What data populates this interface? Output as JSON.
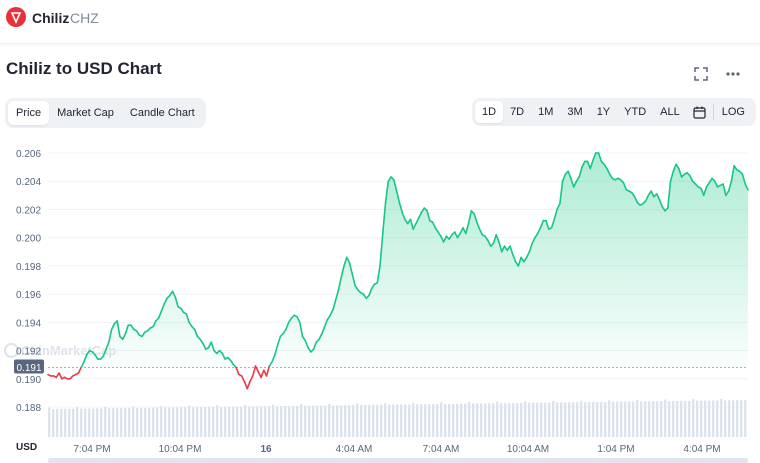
{
  "header": {
    "coin_name": "Chiliz",
    "coin_symbol": "CHZ"
  },
  "chart_title": "Chiliz to USD Chart",
  "tabs": [
    {
      "label": "Price",
      "active": true
    },
    {
      "label": "Market Cap",
      "active": false
    },
    {
      "label": "Candle Chart",
      "active": false
    }
  ],
  "ranges": [
    {
      "label": "1D",
      "active": true
    },
    {
      "label": "7D",
      "active": false
    },
    {
      "label": "1M",
      "active": false
    },
    {
      "label": "3M",
      "active": false
    },
    {
      "label": "1Y",
      "active": false
    },
    {
      "label": "YTD",
      "active": false
    },
    {
      "label": "ALL",
      "active": false
    }
  ],
  "log_label": "LOG",
  "currency_label": "USD",
  "watermark": "CoinMarketCap",
  "colors": {
    "up": "#16c784",
    "down": "#ea3943",
    "volume": "#cfd6e4",
    "ref_line": "#a6b0c3"
  },
  "chart_data": {
    "type": "area",
    "yticks": [
      "0.188",
      "0.190",
      "0.192",
      "0.194",
      "0.196",
      "0.198",
      "0.200",
      "0.202",
      "0.204",
      "0.206"
    ],
    "ylim": [
      0.1872,
      0.2068
    ],
    "xticks": [
      "7:04 PM",
      "10:04 PM",
      "16",
      "4:04 AM",
      "7:04 AM",
      "10:04 AM",
      "1:04 PM",
      "4:04 PM"
    ],
    "open_price": 0.1908,
    "open_price_label": "0.191",
    "price_series": [
      0.1903,
      0.1902,
      0.1902,
      0.1901,
      0.1904,
      0.19,
      0.1901,
      0.19,
      0.19,
      0.1902,
      0.1903,
      0.1904,
      0.1908,
      0.1912,
      0.1917,
      0.192,
      0.1919,
      0.1917,
      0.1914,
      0.1914,
      0.1916,
      0.1921,
      0.1926,
      0.1935,
      0.1939,
      0.1941,
      0.193,
      0.1928,
      0.1932,
      0.1938,
      0.1938,
      0.1935,
      0.1934,
      0.1931,
      0.193,
      0.1933,
      0.1934,
      0.1936,
      0.1937,
      0.1941,
      0.1943,
      0.1948,
      0.1953,
      0.1957,
      0.1959,
      0.1962,
      0.1958,
      0.1951,
      0.195,
      0.1947,
      0.1946,
      0.194,
      0.1937,
      0.1935,
      0.193,
      0.1928,
      0.1925,
      0.1921,
      0.1922,
      0.1926,
      0.192,
      0.1918,
      0.192,
      0.1918,
      0.1914,
      0.1915,
      0.1913,
      0.191,
      0.1908,
      0.1903,
      0.1902,
      0.1898,
      0.1893,
      0.1898,
      0.1902,
      0.1909,
      0.1905,
      0.1901,
      0.1906,
      0.1902,
      0.1909,
      0.1912,
      0.1917,
      0.1924,
      0.193,
      0.1932,
      0.1935,
      0.194,
      0.1943,
      0.1945,
      0.1944,
      0.194,
      0.193,
      0.1927,
      0.1922,
      0.1919,
      0.1921,
      0.1926,
      0.1928,
      0.1932,
      0.1937,
      0.1942,
      0.1945,
      0.1949,
      0.1956,
      0.1963,
      0.1972,
      0.198,
      0.1986,
      0.1982,
      0.1974,
      0.1966,
      0.1963,
      0.1961,
      0.196,
      0.1957,
      0.1959,
      0.1964,
      0.1967,
      0.1968,
      0.198,
      0.2003,
      0.2025,
      0.204,
      0.2043,
      0.2041,
      0.2033,
      0.2025,
      0.2018,
      0.2013,
      0.201,
      0.2013,
      0.2006,
      0.201,
      0.2014,
      0.2018,
      0.2021,
      0.2019,
      0.2012,
      0.2011,
      0.2007,
      0.2004,
      0.2001,
      0.1997,
      0.2001,
      0.1999,
      0.2002,
      0.2004,
      0.2,
      0.2003,
      0.2007,
      0.2003,
      0.201,
      0.2019,
      0.2017,
      0.2011,
      0.2006,
      0.2002,
      0.2001,
      0.1998,
      0.1994,
      0.1996,
      0.2002,
      0.1997,
      0.199,
      0.1994,
      0.1991,
      0.1994,
      0.1988,
      0.1983,
      0.198,
      0.1986,
      0.1983,
      0.1986,
      0.199,
      0.1996,
      0.2,
      0.2003,
      0.2007,
      0.2012,
      0.2012,
      0.2006,
      0.2007,
      0.2013,
      0.202,
      0.2024,
      0.204,
      0.2045,
      0.2047,
      0.2042,
      0.2036,
      0.204,
      0.2043,
      0.205,
      0.2054,
      0.2054,
      0.2049,
      0.2055,
      0.206,
      0.206,
      0.2054,
      0.2052,
      0.2049,
      0.2045,
      0.2042,
      0.2041,
      0.2042,
      0.2041,
      0.2039,
      0.2034,
      0.2033,
      0.2032,
      0.2029,
      0.2025,
      0.2023,
      0.2024,
      0.2026,
      0.203,
      0.2033,
      0.2029,
      0.2031,
      0.2027,
      0.2022,
      0.2019,
      0.2021,
      0.204,
      0.2047,
      0.2052,
      0.2049,
      0.2043,
      0.2045,
      0.2046,
      0.2044,
      0.204,
      0.2038,
      0.2036,
      0.2035,
      0.203,
      0.2036,
      0.2039,
      0.2042,
      0.204,
      0.2036,
      0.2037,
      0.2038,
      0.203,
      0.2033,
      0.204,
      0.2051,
      0.2048,
      0.2047,
      0.2045,
      0.2038,
      0.2034
    ],
    "grid": true
  }
}
